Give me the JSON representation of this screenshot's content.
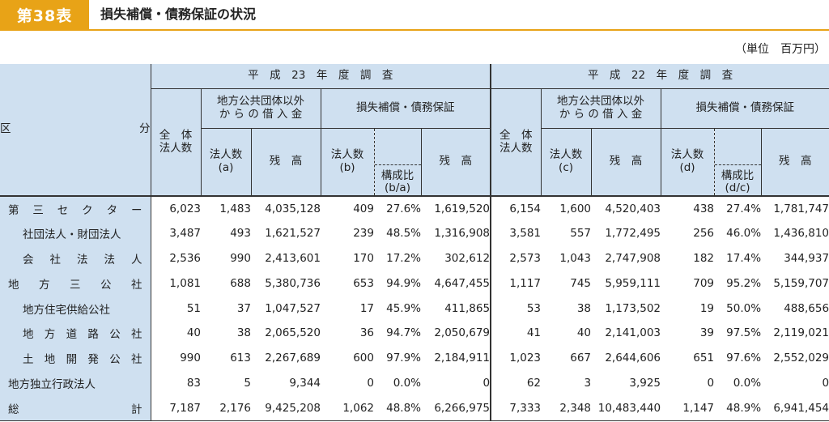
{
  "header": {
    "badge": "第38表",
    "title": "損失補償・債務保証の状況",
    "unit": "（単位　百万円）"
  },
  "table": {
    "row_header": [
      "区",
      "分"
    ],
    "year1": "平　成　23　年　度　調　査",
    "year2": "平　成　22　年　度　調　査",
    "total_corp": "全　体\n法人数",
    "borrow_group": "地方公共団体以外\nか ら の 借 入 金",
    "guarantee_group": "損失補償・債務保証",
    "y1": {
      "corp_a": "法人数\n(a)",
      "bal1": "残　高",
      "corp_b": "法人数\n(b)",
      "ratio": "構成比\n(b/a)",
      "bal2": "残　高"
    },
    "y2": {
      "corp_c": "法人数\n(c)",
      "bal1": "残　高",
      "corp_d": "法人数\n(d)",
      "ratio": "構成比\n(d/c)",
      "bal2": "残　高"
    },
    "rows": [
      {
        "label": [
          "第",
          "三",
          "セ",
          "ク",
          "タ",
          "ー"
        ],
        "sub": false,
        "v": [
          "6,023",
          "1,483",
          "4,035,128",
          "409",
          "27.6%",
          "1,619,520",
          "6,154",
          "1,600",
          "4,520,403",
          "438",
          "27.4%",
          "1,781,747"
        ]
      },
      {
        "label": [
          "社団法人・財団法人"
        ],
        "sub": true,
        "v": [
          "3,487",
          "493",
          "1,621,527",
          "239",
          "48.5%",
          "1,316,908",
          "3,581",
          "557",
          "1,772,495",
          "256",
          "46.0%",
          "1,436,810"
        ]
      },
      {
        "label": [
          "会",
          "社",
          "法",
          "法",
          "人"
        ],
        "sub": true,
        "v": [
          "2,536",
          "990",
          "2,413,601",
          "170",
          "17.2%",
          "302,612",
          "2,573",
          "1,043",
          "2,747,908",
          "182",
          "17.4%",
          "344,937"
        ]
      },
      {
        "label": [
          "地",
          "方",
          "三",
          "公",
          "社"
        ],
        "sub": false,
        "v": [
          "1,081",
          "688",
          "5,380,736",
          "653",
          "94.9%",
          "4,647,455",
          "1,117",
          "745",
          "5,959,111",
          "709",
          "95.2%",
          "5,159,707"
        ]
      },
      {
        "label": [
          "地方住宅供給公社"
        ],
        "sub": true,
        "v": [
          "51",
          "37",
          "1,047,527",
          "17",
          "45.9%",
          "411,865",
          "53",
          "38",
          "1,173,502",
          "19",
          "50.0%",
          "488,656"
        ]
      },
      {
        "label": [
          "地",
          "方",
          "道",
          "路",
          "公",
          "社"
        ],
        "sub": true,
        "v": [
          "40",
          "38",
          "2,065,520",
          "36",
          "94.7%",
          "2,050,679",
          "41",
          "40",
          "2,141,003",
          "39",
          "97.5%",
          "2,119,021"
        ]
      },
      {
        "label": [
          "土",
          "地",
          "開",
          "発",
          "公",
          "社"
        ],
        "sub": true,
        "v": [
          "990",
          "613",
          "2,267,689",
          "600",
          "97.9%",
          "2,184,911",
          "1,023",
          "667",
          "2,644,606",
          "651",
          "97.6%",
          "2,552,029"
        ]
      },
      {
        "label": [
          "地方独立行政法人"
        ],
        "sub": false,
        "v": [
          "83",
          "5",
          "9,344",
          "0",
          "0.0%",
          "0",
          "62",
          "3",
          "3,925",
          "0",
          "0.0%",
          "0"
        ]
      },
      {
        "label": [
          "総",
          "計"
        ],
        "sub": false,
        "v": [
          "7,187",
          "2,176",
          "9,425,208",
          "1,062",
          "48.8%",
          "6,266,975",
          "7,333",
          "2,348",
          "10,483,440",
          "1,147",
          "48.9%",
          "6,941,454"
        ]
      }
    ]
  }
}
